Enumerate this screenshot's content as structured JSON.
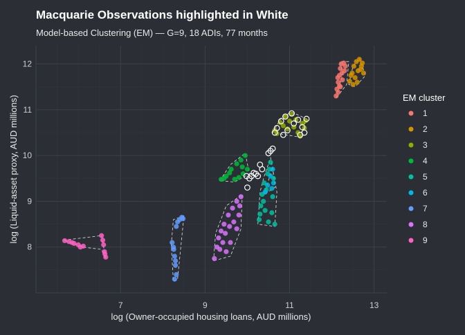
{
  "chart_data": {
    "type": "scatter",
    "title": "Macquarie Observations highlighted in White",
    "subtitle": "Model-based Clustering (EM) — G=9, 18 ADIs, 77 months",
    "xlabel": "log (Owner-occupied housing loans, AUD millions)",
    "ylabel": "log (Liquid-asset proxy, AUD millions)",
    "xlim": [
      5.0,
      13.3
    ],
    "ylim": [
      7.0,
      12.4
    ],
    "xticks": [
      7,
      9,
      11,
      13
    ],
    "yticks": [
      8,
      9,
      10,
      11,
      12
    ],
    "grid": true,
    "legend_title": "EM cluster",
    "legend_position": "right",
    "highlight_color": "#ffffff",
    "series": [
      {
        "name": "1",
        "color": "#F8766D",
        "hull": [
          [
            12.1,
            11.25
          ],
          [
            12.25,
            11.75
          ],
          [
            12.2,
            12.05
          ],
          [
            12.4,
            12.05
          ],
          [
            12.35,
            11.55
          ]
        ],
        "points": [
          [
            12.1,
            11.3
          ],
          [
            12.12,
            11.45
          ],
          [
            12.15,
            11.6
          ],
          [
            12.18,
            11.75
          ],
          [
            12.2,
            11.9
          ],
          [
            12.22,
            12.0
          ],
          [
            12.28,
            12.02
          ],
          [
            12.3,
            11.85
          ],
          [
            12.25,
            11.65
          ],
          [
            12.2,
            11.5
          ],
          [
            12.15,
            11.38
          ],
          [
            12.32,
            11.95
          ],
          [
            12.18,
            11.52
          ],
          [
            12.24,
            11.8
          ],
          [
            12.14,
            11.7
          ]
        ]
      },
      {
        "name": "2",
        "color": "#D39200",
        "hull": [
          [
            12.4,
            11.55
          ],
          [
            12.5,
            11.95
          ],
          [
            12.65,
            12.12
          ],
          [
            12.8,
            11.75
          ],
          [
            12.55,
            11.5
          ]
        ],
        "points": [
          [
            12.42,
            11.62
          ],
          [
            12.48,
            11.8
          ],
          [
            12.52,
            11.95
          ],
          [
            12.58,
            12.05
          ],
          [
            12.65,
            12.1
          ],
          [
            12.7,
            11.95
          ],
          [
            12.75,
            11.8
          ],
          [
            12.6,
            11.6
          ],
          [
            12.55,
            11.7
          ],
          [
            12.5,
            11.55
          ],
          [
            12.68,
            11.88
          ],
          [
            12.45,
            11.75
          ],
          [
            12.62,
            11.85
          ],
          [
            12.72,
            12.02
          ]
        ]
      },
      {
        "name": "3",
        "color": "#93AA00",
        "hull": [
          [
            10.6,
            10.5
          ],
          [
            10.8,
            10.82
          ],
          [
            11.05,
            10.95
          ],
          [
            11.4,
            10.8
          ],
          [
            11.25,
            10.4
          ]
        ],
        "points": [
          [
            10.65,
            10.55
          ],
          [
            10.78,
            10.72
          ],
          [
            10.9,
            10.85
          ],
          [
            11.05,
            10.9
          ],
          [
            11.15,
            10.78
          ],
          [
            11.3,
            10.7
          ],
          [
            11.35,
            10.6
          ],
          [
            11.2,
            10.5
          ],
          [
            11.1,
            10.62
          ],
          [
            10.95,
            10.58
          ],
          [
            11.25,
            10.42
          ],
          [
            10.85,
            10.65
          ],
          [
            11.0,
            10.75
          ],
          [
            11.38,
            10.76
          ],
          [
            10.7,
            10.48
          ]
        ]
      },
      {
        "name": "4",
        "color": "#00BA38",
        "hull": [
          [
            9.35,
            9.45
          ],
          [
            9.6,
            9.8
          ],
          [
            9.95,
            10.05
          ],
          [
            10.05,
            9.6
          ],
          [
            9.7,
            9.42
          ]
        ],
        "points": [
          [
            9.38,
            9.48
          ],
          [
            9.5,
            9.55
          ],
          [
            9.62,
            9.7
          ],
          [
            9.75,
            9.82
          ],
          [
            9.85,
            9.9
          ],
          [
            9.95,
            10.0
          ],
          [
            9.9,
            9.6
          ],
          [
            9.8,
            9.52
          ],
          [
            9.7,
            9.48
          ],
          [
            9.58,
            9.62
          ],
          [
            10.0,
            9.7
          ],
          [
            9.45,
            9.5
          ],
          [
            9.88,
            9.75
          ]
        ]
      },
      {
        "name": "5",
        "color": "#00C19F",
        "hull": [
          [
            10.25,
            8.5
          ],
          [
            10.3,
            9.2
          ],
          [
            10.4,
            9.55
          ],
          [
            10.55,
            9.95
          ],
          [
            10.7,
            9.2
          ],
          [
            10.65,
            8.45
          ]
        ],
        "points": [
          [
            10.28,
            8.6
          ],
          [
            10.32,
            8.9
          ],
          [
            10.35,
            9.15
          ],
          [
            10.4,
            9.4
          ],
          [
            10.48,
            9.6
          ],
          [
            10.55,
            9.85
          ],
          [
            10.62,
            9.5
          ],
          [
            10.6,
            9.1
          ],
          [
            10.58,
            8.75
          ],
          [
            10.5,
            8.55
          ],
          [
            10.42,
            8.8
          ],
          [
            10.38,
            9.0
          ],
          [
            10.65,
            8.5
          ],
          [
            10.45,
            9.25
          ],
          [
            10.52,
            9.7
          ],
          [
            10.3,
            8.72
          ]
        ]
      },
      {
        "name": "6",
        "color": "#00B9E3",
        "hull": [
          [
            10.4,
            9.15
          ],
          [
            10.5,
            9.45
          ],
          [
            10.6,
            9.75
          ],
          [
            10.65,
            9.3
          ]
        ],
        "points": [
          [
            10.42,
            9.2
          ],
          [
            10.48,
            9.35
          ],
          [
            10.55,
            9.55
          ],
          [
            10.6,
            9.7
          ],
          [
            10.62,
            9.4
          ],
          [
            10.58,
            9.28
          ]
        ]
      },
      {
        "name": "7",
        "color": "#619CFF",
        "hull": [
          [
            8.2,
            8.05
          ],
          [
            8.25,
            8.6
          ],
          [
            8.5,
            8.68
          ],
          [
            8.35,
            7.3
          ],
          [
            8.25,
            7.25
          ]
        ],
        "points": [
          [
            8.22,
            8.1
          ],
          [
            8.25,
            8.0
          ],
          [
            8.28,
            7.8
          ],
          [
            8.3,
            7.6
          ],
          [
            8.32,
            7.4
          ],
          [
            8.28,
            7.3
          ],
          [
            8.35,
            8.55
          ],
          [
            8.45,
            8.65
          ],
          [
            8.4,
            8.6
          ],
          [
            8.32,
            8.45
          ],
          [
            8.26,
            7.95
          ],
          [
            8.3,
            7.7
          ],
          [
            8.48,
            8.62
          ]
        ]
      },
      {
        "name": "8",
        "color": "#DB72FB",
        "hull": [
          [
            9.2,
            7.7
          ],
          [
            9.25,
            8.3
          ],
          [
            9.5,
            8.9
          ],
          [
            9.88,
            9.15
          ],
          [
            9.85,
            8.4
          ],
          [
            9.6,
            7.8
          ]
        ],
        "points": [
          [
            9.22,
            7.75
          ],
          [
            9.28,
            8.0
          ],
          [
            9.32,
            8.2
          ],
          [
            9.38,
            8.35
          ],
          [
            9.45,
            8.5
          ],
          [
            9.55,
            8.7
          ],
          [
            9.65,
            8.85
          ],
          [
            9.75,
            9.0
          ],
          [
            9.85,
            9.1
          ],
          [
            9.8,
            8.7
          ],
          [
            9.75,
            8.4
          ],
          [
            9.6,
            8.1
          ],
          [
            9.5,
            7.9
          ],
          [
            9.42,
            8.1
          ],
          [
            9.48,
            8.3
          ],
          [
            9.35,
            7.95
          ],
          [
            9.68,
            8.55
          ],
          [
            9.58,
            8.45
          ],
          [
            9.82,
            8.9
          ]
        ]
      },
      {
        "name": "9",
        "color": "#FF61C3",
        "hull": [
          [
            5.65,
            8.15
          ],
          [
            6.55,
            8.25
          ],
          [
            6.65,
            7.75
          ],
          [
            6.55,
            7.95
          ],
          [
            6.1,
            8.0
          ]
        ],
        "points": [
          [
            5.68,
            8.14
          ],
          [
            5.78,
            8.12
          ],
          [
            5.9,
            8.08
          ],
          [
            6.0,
            8.05
          ],
          [
            6.12,
            8.02
          ],
          [
            6.55,
            8.25
          ],
          [
            6.58,
            8.15
          ],
          [
            6.6,
            8.05
          ],
          [
            6.62,
            7.9
          ],
          [
            6.65,
            7.78
          ],
          [
            5.85,
            8.1
          ],
          [
            6.05,
            8.0
          ],
          [
            6.63,
            7.85
          ]
        ]
      }
    ],
    "highlighted_points": [
      [
        10.55,
        10.1
      ],
      [
        10.5,
        10.05
      ],
      [
        10.6,
        10.15
      ],
      [
        10.3,
        9.8
      ],
      [
        10.35,
        9.7
      ],
      [
        10.2,
        9.6
      ],
      [
        10.1,
        9.55
      ],
      [
        10.05,
        9.5
      ],
      [
        10.15,
        9.62
      ],
      [
        10.25,
        9.55
      ],
      [
        10.0,
        9.3
      ],
      [
        9.98,
        9.55
      ],
      [
        10.7,
        10.6
      ],
      [
        10.8,
        10.75
      ],
      [
        10.9,
        10.85
      ],
      [
        11.05,
        10.92
      ],
      [
        11.2,
        10.78
      ],
      [
        11.3,
        10.62
      ],
      [
        11.35,
        10.5
      ],
      [
        11.1,
        10.7
      ],
      [
        10.95,
        10.55
      ],
      [
        10.85,
        10.45
      ],
      [
        10.65,
        10.5
      ],
      [
        11.25,
        10.45
      ],
      [
        11.4,
        10.8
      ]
    ]
  }
}
